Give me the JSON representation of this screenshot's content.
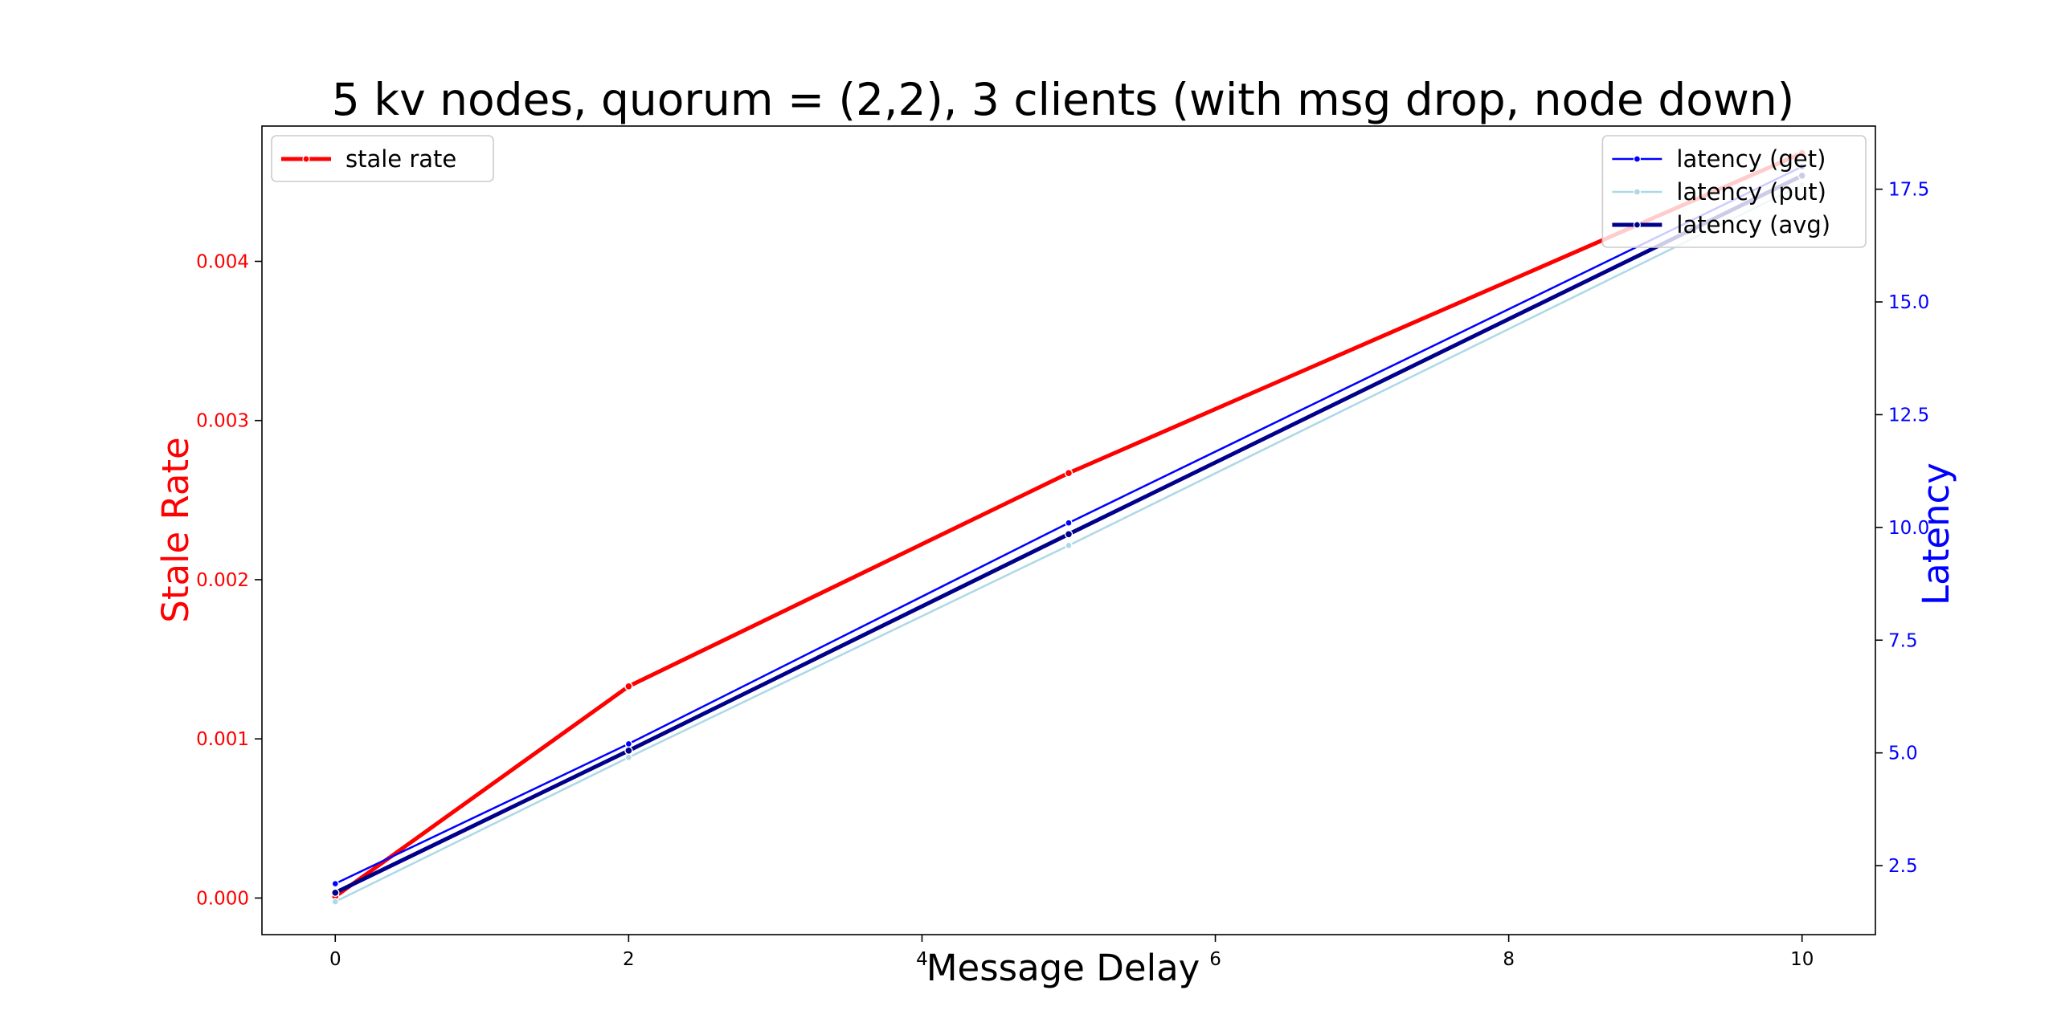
{
  "chart_data": {
    "type": "line",
    "title": "5 kv nodes, quorum = (2,2), 3 clients (with msg drop, node down)",
    "xlabel": "Message Delay",
    "ylabel_left": "Stale Rate",
    "ylabel_right": "Latency",
    "x": [
      0,
      2,
      5,
      10
    ],
    "xlim": [
      -0.5,
      10.5
    ],
    "x_ticks": [
      0,
      2,
      4,
      6,
      8,
      10
    ],
    "x_tick_labels": [
      "0",
      "2",
      "4",
      "6",
      "8",
      "10"
    ],
    "ylim_left": [
      -0.00023,
      0.00485
    ],
    "y_ticks_left": [
      0,
      0.001,
      0.002,
      0.003,
      0.004
    ],
    "y_tick_labels_left": [
      "0.000",
      "0.001",
      "0.002",
      "0.003",
      "0.004"
    ],
    "ylim_right": [
      0.97,
      18.9
    ],
    "y_ticks_right": [
      2.5,
      5,
      7.5,
      10,
      12.5,
      15,
      17.5
    ],
    "y_tick_labels_right": [
      "2.5",
      "5.0",
      "7.5",
      "10.0",
      "12.5",
      "15.0",
      "17.5"
    ],
    "grid": false,
    "series": [
      {
        "name": "stale rate",
        "axis": "left",
        "values": [
          1e-05,
          0.00133,
          0.00267,
          0.00468
        ],
        "color": "#ff0000",
        "width": 5
      },
      {
        "name": "latency (get)",
        "axis": "right",
        "values": [
          2.1,
          5.2,
          10.1,
          18.0
        ],
        "color": "#0000ff",
        "width": 2.5
      },
      {
        "name": "latency (put)",
        "axis": "right",
        "values": [
          1.7,
          4.9,
          9.6,
          17.6
        ],
        "color": "#add8e6",
        "width": 2.5
      },
      {
        "name": "latency (avg)",
        "axis": "right",
        "values": [
          1.9,
          5.05,
          9.85,
          17.8
        ],
        "color": "#00008b",
        "width": 5
      }
    ],
    "legend_left": {
      "placement": "upper-left",
      "entries": [
        "stale rate"
      ]
    },
    "legend_right": {
      "placement": "upper-right",
      "entries": [
        "latency (get)",
        "latency (put)",
        "latency (avg)"
      ]
    },
    "colors": {
      "left_axis": "#ff0000",
      "right_axis": "#0000ff",
      "frame": "#000000"
    }
  }
}
